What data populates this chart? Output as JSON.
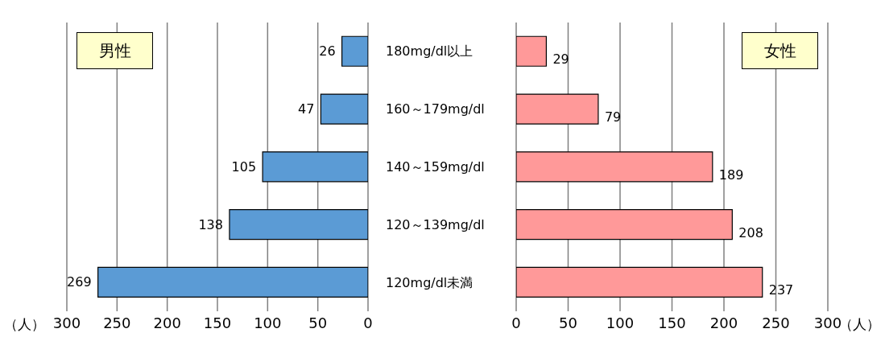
{
  "chart_data": [
    {
      "type": "bar",
      "orientation": "horizontal",
      "title": "男性",
      "xlabel": "（人）",
      "categories": [
        "180mg/dl以上",
        "160～179mg/dl",
        "140～159mg/dl",
        "120～139mg/dl",
        "120mg/dl未満"
      ],
      "values": [
        26,
        47,
        105,
        138,
        269
      ],
      "color": "#5b9bd5",
      "xlim": [
        300,
        0
      ],
      "xticks": [
        300,
        250,
        200,
        150,
        100,
        50,
        0
      ],
      "grid": "x",
      "data_labels": true,
      "legend": false
    },
    {
      "type": "bar",
      "orientation": "horizontal",
      "title": "女性",
      "xlabel": "（人）",
      "categories": [
        null,
        null,
        null,
        null,
        null
      ],
      "values": [
        29,
        79,
        189,
        208,
        237
      ],
      "color": "#ff9999",
      "xlim": [
        0,
        300
      ],
      "xticks": [
        0,
        50,
        100,
        150,
        200,
        250,
        300
      ],
      "grid": "x",
      "data_labels": true,
      "legend": false,
      "tick_labels": "x"
    }
  ]
}
